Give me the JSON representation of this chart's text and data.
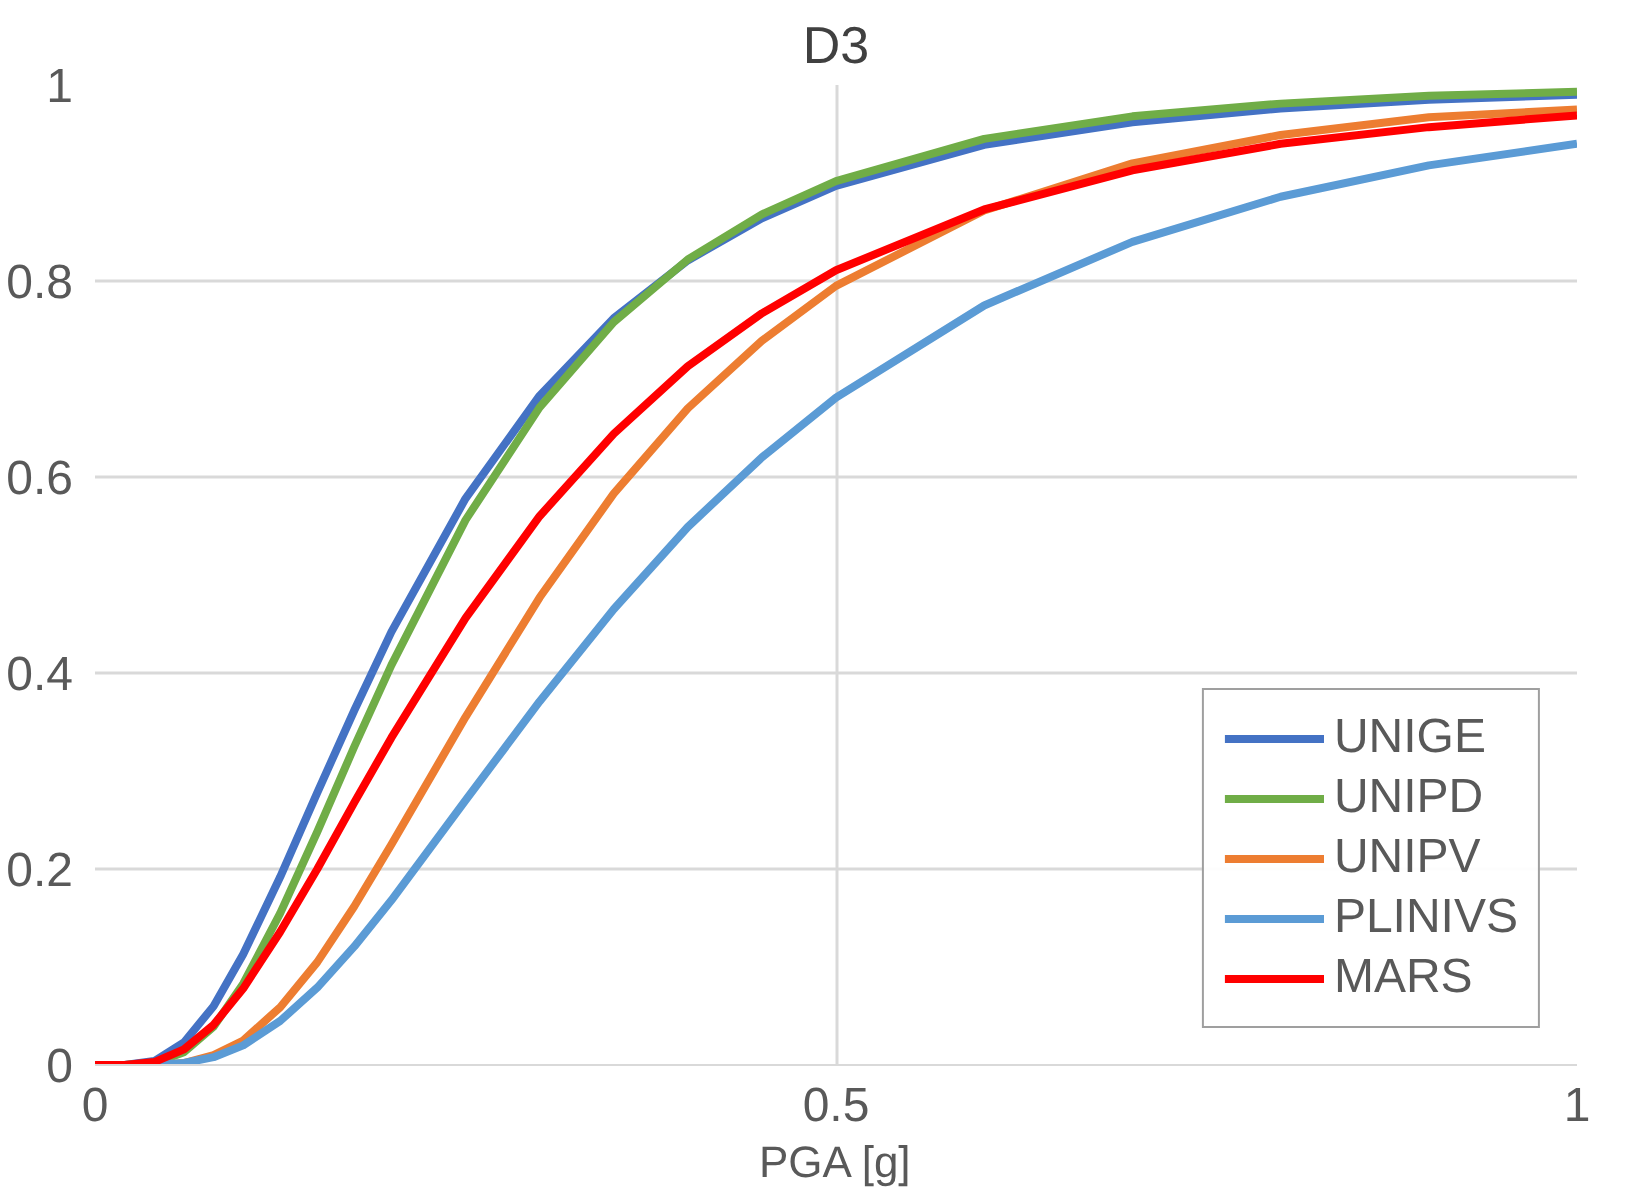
{
  "chart_data": {
    "type": "line",
    "title": "D3",
    "xlabel": "PGA [g]",
    "x": [
      0,
      0.02,
      0.04,
      0.06,
      0.08,
      0.1,
      0.125,
      0.15,
      0.175,
      0.2,
      0.25,
      0.3,
      0.35,
      0.4,
      0.45,
      0.5,
      0.6,
      0.7,
      0.8,
      0.9,
      1.0
    ],
    "series": [
      {
        "name": "UNIGE",
        "color": "#4472c4",
        "values": [
          0,
          0,
          0.004,
          0.023,
          0.06,
          0.113,
          0.192,
          0.278,
          0.362,
          0.442,
          0.578,
          0.683,
          0.762,
          0.821,
          0.864,
          0.897,
          0.939,
          0.962,
          0.976,
          0.985,
          0.99
        ]
      },
      {
        "name": "UNIPD",
        "color": "#70ad47",
        "values": [
          0,
          0,
          0.002,
          0.013,
          0.039,
          0.083,
          0.155,
          0.238,
          0.325,
          0.408,
          0.556,
          0.671,
          0.758,
          0.822,
          0.868,
          0.902,
          0.945,
          0.968,
          0.981,
          0.989,
          0.993
        ]
      },
      {
        "name": "UNIPV",
        "color": "#ed7d31",
        "x": [
          0.04,
          0.06,
          0.08,
          0.1,
          0.125,
          0.15,
          0.175,
          0.2,
          0.25,
          0.3,
          0.35,
          0.4,
          0.45,
          0.5,
          0.6,
          0.7,
          0.8,
          0.9,
          1.0
        ],
        "values": [
          0,
          0.002,
          0.01,
          0.025,
          0.059,
          0.105,
          0.162,
          0.225,
          0.355,
          0.477,
          0.583,
          0.67,
          0.739,
          0.795,
          0.872,
          0.92,
          0.949,
          0.967,
          0.975
        ]
      },
      {
        "name": "PLINIVS",
        "color": "#5b9bd5",
        "values": [
          0,
          0,
          0,
          0.002,
          0.008,
          0.02,
          0.045,
          0.079,
          0.121,
          0.168,
          0.27,
          0.371,
          0.465,
          0.549,
          0.62,
          0.681,
          0.775,
          0.84,
          0.886,
          0.918,
          0.94
        ]
      },
      {
        "name": "MARS",
        "color": "#ff0000",
        "values": [
          0,
          0,
          0.003,
          0.016,
          0.041,
          0.078,
          0.136,
          0.2,
          0.268,
          0.334,
          0.456,
          0.56,
          0.644,
          0.713,
          0.767,
          0.811,
          0.873,
          0.913,
          0.94,
          0.957,
          0.969
        ]
      }
    ],
    "xlim": [
      0,
      1
    ],
    "ylim": [
      0,
      1
    ],
    "xticks": [
      0,
      0.5,
      1
    ],
    "yticks": [
      0,
      {
        "value": 0.2,
        "label": "0.2"
      },
      {
        "value": 0.4,
        "label": "0.4"
      },
      {
        "value": 0.6,
        "label": "0.6"
      },
      {
        "value": 0.8,
        "label": "0.8"
      },
      1
    ],
    "grid": true,
    "legend": "bottom right",
    "marker": "none",
    "line_style": "solid"
  }
}
